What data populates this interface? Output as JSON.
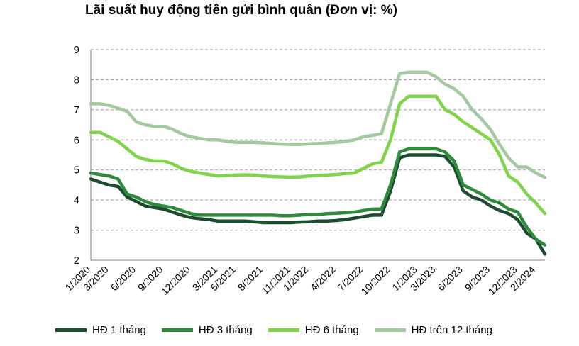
{
  "chart_data": {
    "type": "line",
    "title": "Lãi suất huy động tiền gửi bình quân (Đơn vị: %)",
    "xlabel": "",
    "ylabel": "",
    "ylim": [
      2,
      9
    ],
    "yticks": [
      "2",
      "3",
      "4",
      "5",
      "6",
      "7",
      "8",
      "9"
    ],
    "grid": true,
    "legend_position": "bottom",
    "categories": [
      "1/2020",
      "2/2020",
      "3/2020",
      "4/2020",
      "5/2020",
      "6/2020",
      "7/2020",
      "8/2020",
      "9/2020",
      "10/2020",
      "11/2020",
      "12/2020",
      "1/2021",
      "2/2021",
      "3/2021",
      "4/2021",
      "5/2021",
      "6/2021",
      "7/2021",
      "8/2021",
      "9/2021",
      "10/2021",
      "11/2021",
      "12/2021",
      "1/2022",
      "2/2022",
      "3/2022",
      "4/2022",
      "5/2022",
      "6/2022",
      "7/2022",
      "8/2022",
      "9/2022",
      "10/2022",
      "11/2022",
      "12/2022",
      "1/2023",
      "2/2023",
      "3/2023",
      "4/2023",
      "5/2023",
      "6/2023",
      "7/2023",
      "8/2023",
      "9/2023",
      "10/2023",
      "11/2023",
      "12/2023",
      "1/2024",
      "2/2024",
      "3/2024"
    ],
    "tick_labels": [
      "1/2020",
      "3/2020",
      "6/2020",
      "9/2020",
      "12/2020",
      "3/2021",
      "5/2021",
      "8/2021",
      "11/2021",
      "1/2022",
      "4/2022",
      "7/2022",
      "10/2022",
      "1/2023",
      "3/2023",
      "6/2023",
      "9/2023",
      "12/2023",
      "2/2024"
    ],
    "series": [
      {
        "name": "HĐ 1 tháng",
        "color": "#1b4d2e",
        "values": [
          4.7,
          4.6,
          4.5,
          4.45,
          4.1,
          3.95,
          3.8,
          3.75,
          3.7,
          3.6,
          3.5,
          3.42,
          3.38,
          3.35,
          3.3,
          3.3,
          3.3,
          3.3,
          3.28,
          3.25,
          3.25,
          3.25,
          3.25,
          3.27,
          3.28,
          3.3,
          3.3,
          3.32,
          3.35,
          3.4,
          3.45,
          3.5,
          3.5,
          4.3,
          5.4,
          5.5,
          5.5,
          5.5,
          5.5,
          5.45,
          5.1,
          4.3,
          4.1,
          4.0,
          3.8,
          3.65,
          3.55,
          3.35,
          2.9,
          2.7,
          2.2
        ]
      },
      {
        "name": "HĐ 3 tháng",
        "color": "#2e8b3c",
        "values": [
          4.9,
          4.85,
          4.8,
          4.7,
          4.2,
          4.1,
          3.95,
          3.85,
          3.8,
          3.75,
          3.65,
          3.55,
          3.5,
          3.5,
          3.5,
          3.5,
          3.5,
          3.5,
          3.5,
          3.5,
          3.5,
          3.48,
          3.48,
          3.5,
          3.52,
          3.52,
          3.55,
          3.56,
          3.58,
          3.6,
          3.65,
          3.7,
          3.7,
          4.5,
          5.6,
          5.7,
          5.7,
          5.7,
          5.7,
          5.6,
          5.3,
          4.5,
          4.35,
          4.2,
          4.0,
          3.9,
          3.7,
          3.6,
          3.1,
          2.7,
          2.5
        ]
      },
      {
        "name": "HĐ 6 tháng",
        "color": "#7fd44a",
        "values": [
          6.25,
          6.25,
          6.1,
          5.95,
          5.7,
          5.45,
          5.35,
          5.3,
          5.3,
          5.2,
          5.05,
          4.95,
          4.9,
          4.85,
          4.8,
          4.82,
          4.83,
          4.84,
          4.83,
          4.8,
          4.78,
          4.77,
          4.76,
          4.77,
          4.8,
          4.82,
          4.83,
          4.85,
          4.88,
          4.9,
          5.05,
          5.2,
          5.25,
          6.0,
          7.2,
          7.45,
          7.45,
          7.45,
          7.45,
          7.0,
          6.85,
          6.6,
          6.4,
          6.2,
          6.0,
          5.5,
          4.8,
          4.6,
          4.2,
          3.9,
          3.55
        ]
      },
      {
        "name": "HĐ trên 12 tháng",
        "color": "#a3c9a0",
        "values": [
          7.2,
          7.2,
          7.15,
          7.05,
          6.95,
          6.6,
          6.5,
          6.45,
          6.45,
          6.35,
          6.2,
          6.1,
          6.05,
          6.0,
          6.0,
          5.95,
          5.92,
          5.92,
          5.92,
          5.9,
          5.88,
          5.86,
          5.85,
          5.85,
          5.87,
          5.88,
          5.9,
          5.92,
          5.95,
          6.0,
          6.1,
          6.15,
          6.2,
          7.2,
          8.2,
          8.25,
          8.25,
          8.25,
          8.1,
          7.85,
          7.7,
          7.45,
          7.0,
          6.7,
          6.35,
          5.85,
          5.4,
          5.1,
          5.1,
          4.9,
          4.75
        ]
      }
    ]
  }
}
